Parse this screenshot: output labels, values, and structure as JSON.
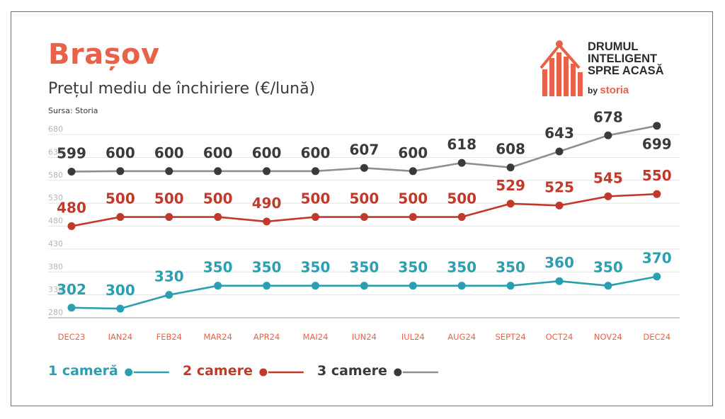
{
  "title": "Brașov",
  "subtitle": "Prețul mediu de închiriere (€/lună)",
  "source": "Sursa: Storia",
  "logo": {
    "lines": [
      "DRUMUL",
      "INTELIGENT",
      "SPRE ACASĂ"
    ],
    "by": "by",
    "brand": "storia"
  },
  "colors": {
    "accent": "#e8624a",
    "series1": "#2a9faf",
    "series2": "#c0392b",
    "series3": "#3a3a3a",
    "series3_line": "#8f8f8f",
    "month_labels": "#e8624a"
  },
  "chart_data": {
    "type": "line",
    "categories": [
      "DEC23",
      "IAN24",
      "FEB24",
      "MAR24",
      "APR24",
      "MAI24",
      "IUN24",
      "IUL24",
      "AUG24",
      "SEPT24",
      "OCT24",
      "NOV24",
      "DEC24"
    ],
    "yticks": [
      280,
      330,
      380,
      430,
      480,
      530,
      580,
      630,
      680
    ],
    "ylim": [
      280,
      700
    ],
    "grid": true,
    "legend_position": "bottom-left",
    "series": [
      {
        "name": "1 cameră",
        "values": [
          302,
          300,
          330,
          350,
          350,
          350,
          350,
          350,
          350,
          350,
          360,
          350,
          370
        ]
      },
      {
        "name": "2 camere",
        "values": [
          480,
          500,
          500,
          500,
          490,
          500,
          500,
          500,
          500,
          529,
          525,
          545,
          550
        ]
      },
      {
        "name": "3 camere",
        "values": [
          599,
          600,
          600,
          600,
          600,
          600,
          607,
          600,
          618,
          608,
          643,
          678,
          699
        ]
      }
    ]
  }
}
